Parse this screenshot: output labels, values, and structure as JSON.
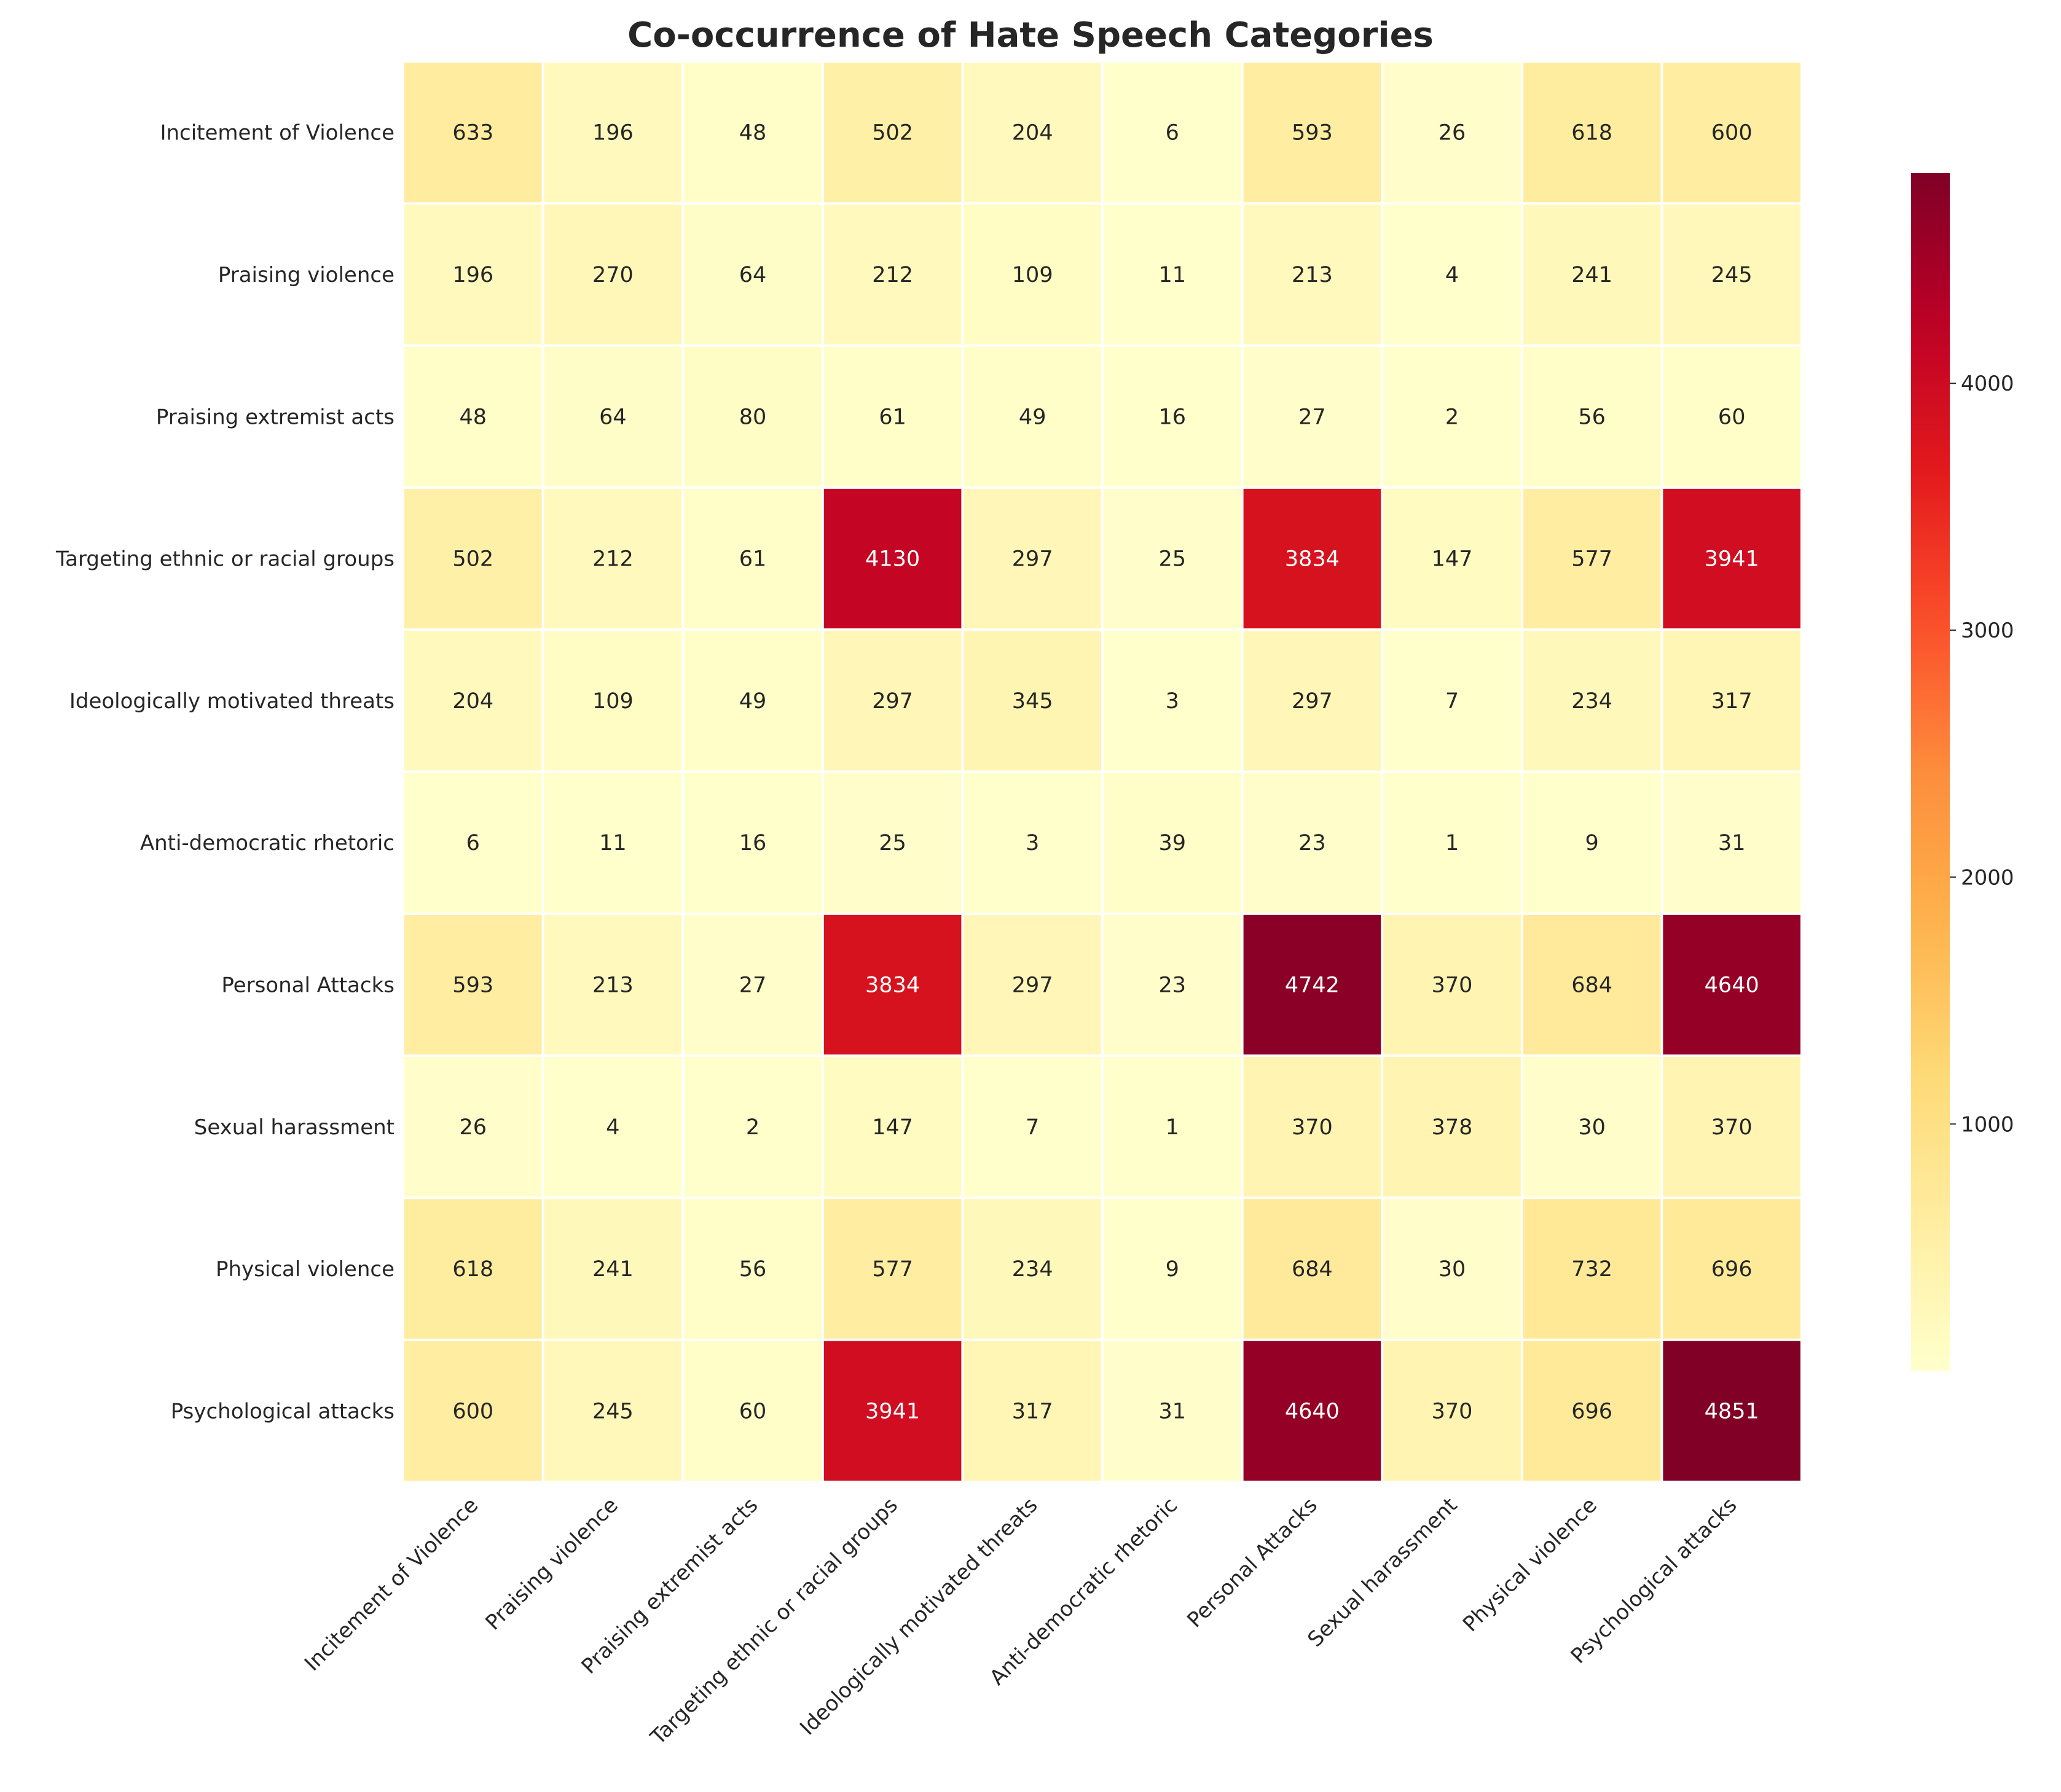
{
  "chart_data": {
    "type": "heatmap",
    "title": "Co-occurrence of Hate Speech Categories",
    "xlabel": "",
    "ylabel": "",
    "categories": [
      "Incitement of Violence",
      "Praising violence",
      "Praising extremist acts",
      "Targeting ethnic or racial groups",
      "Ideologically motivated threats",
      "Anti-democratic rhetoric",
      "Personal Attacks",
      "Sexual harassment",
      "Physical violence",
      "Psychological attacks"
    ],
    "matrix": [
      [
        633,
        196,
        48,
        502,
        204,
        6,
        593,
        26,
        618,
        600
      ],
      [
        196,
        270,
        64,
        212,
        109,
        11,
        213,
        4,
        241,
        245
      ],
      [
        48,
        64,
        80,
        61,
        49,
        16,
        27,
        2,
        56,
        60
      ],
      [
        502,
        212,
        61,
        4130,
        297,
        25,
        3834,
        147,
        577,
        3941
      ],
      [
        204,
        109,
        49,
        297,
        345,
        3,
        297,
        7,
        234,
        317
      ],
      [
        6,
        11,
        16,
        25,
        3,
        39,
        23,
        1,
        9,
        31
      ],
      [
        593,
        213,
        27,
        3834,
        297,
        23,
        4742,
        370,
        684,
        4640
      ],
      [
        26,
        4,
        2,
        147,
        7,
        1,
        370,
        378,
        30,
        370
      ],
      [
        618,
        241,
        56,
        577,
        234,
        9,
        684,
        30,
        732,
        696
      ],
      [
        600,
        245,
        60,
        3941,
        317,
        31,
        4640,
        370,
        696,
        4851
      ]
    ],
    "colormap": "YlOrRd",
    "colorbar": {
      "range": [
        1,
        4851
      ],
      "ticks": [
        1000,
        2000,
        3000,
        4000
      ],
      "tick_labels": [
        "1000",
        "2000",
        "3000",
        "4000"
      ]
    },
    "grid": false,
    "legend": "right"
  }
}
